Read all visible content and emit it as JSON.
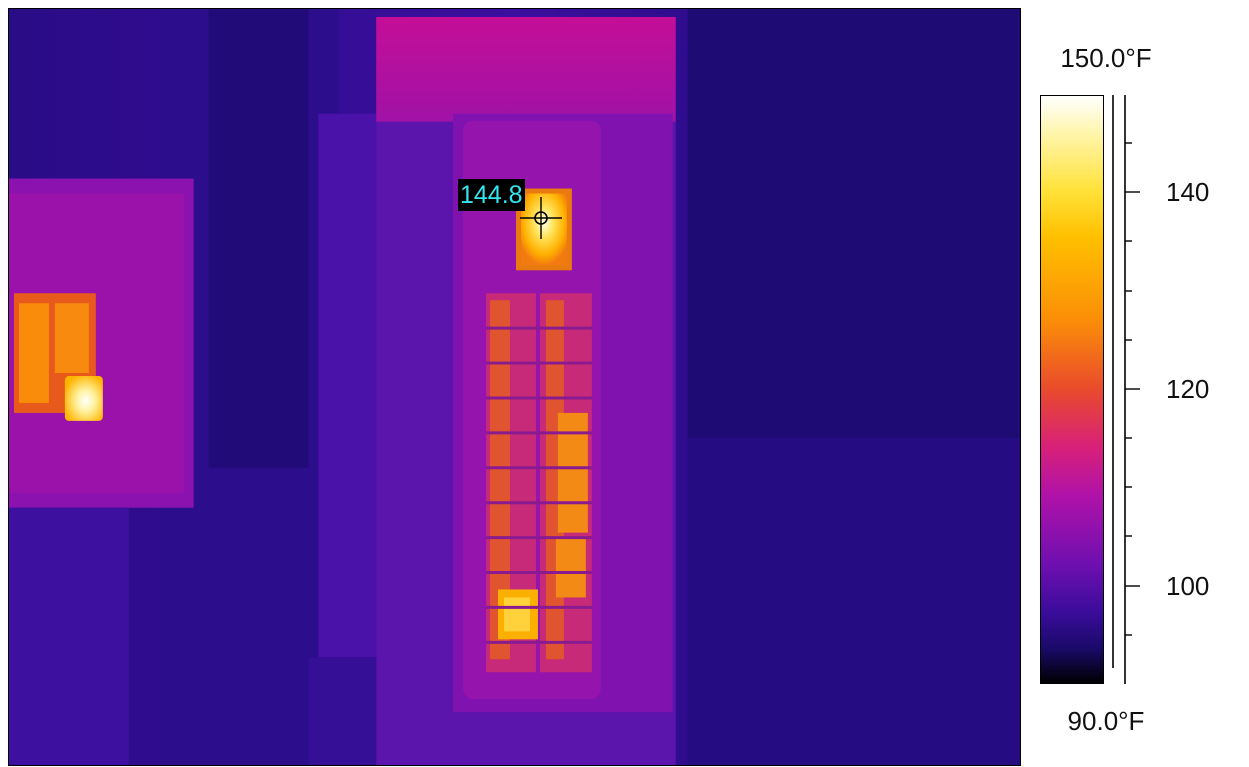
{
  "spot_measurement": {
    "value": "144.8"
  },
  "temperature_scale": {
    "max_label": "150.0°F",
    "min_label": "90.0°F",
    "ticks": [
      "140",
      "120",
      "100"
    ],
    "colors": [
      "#ffffff",
      "#ffe23a",
      "#fb8f07",
      "#e94a2c",
      "#d7207a",
      "#b012a8",
      "#6d0fb0",
      "#1a0a6a",
      "#000000"
    ]
  }
}
